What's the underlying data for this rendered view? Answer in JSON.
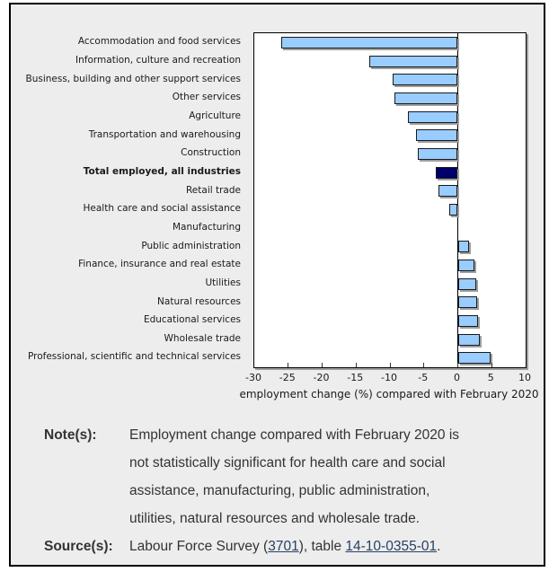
{
  "chart_data": {
    "type": "bar",
    "orientation": "horizontal",
    "title": "",
    "xlabel": "employment change (%) compared with February 2020",
    "ylabel": "",
    "xlim": [
      -30,
      10
    ],
    "xticks": [
      -30,
      -25,
      -20,
      -15,
      -10,
      -5,
      0,
      5,
      10
    ],
    "grid": false,
    "legend": false,
    "categories": [
      "Accommodation and food services",
      "Information, culture and recreation",
      "Business, building and other support services",
      "Other services",
      "Agriculture",
      "Transportation and warehousing",
      "Construction",
      "Total employed, all industries",
      "Retail trade",
      "Health care and social assistance",
      "Manufacturing",
      "Public administration",
      "Finance, insurance and real estate",
      "Utilities",
      "Natural resources",
      "Educational services",
      "Wholesale trade",
      "Professional, scientific and technical services"
    ],
    "values": [
      -26.0,
      -13.0,
      -9.6,
      -9.3,
      -7.4,
      -6.2,
      -5.9,
      -3.2,
      -2.9,
      -1.3,
      0.0,
      1.7,
      2.5,
      2.7,
      2.8,
      3.0,
      3.3,
      4.8
    ],
    "highlight_category": "Total employed, all industries",
    "bar_color": "#99ccff",
    "highlight_color": "#00006b"
  },
  "notes": {
    "note_label": "Note(s):",
    "note_lines": [
      "Employment change compared with February 2020 is",
      "not statistically significant for health care and social",
      "assistance, manufacturing, public administration,",
      "utilities, natural resources and wholesale trade."
    ],
    "source_label": "Source(s):",
    "source_prefix": "Labour Force Survey (",
    "source_link_survey": "3701",
    "source_mid": "), table ",
    "source_link_table": "14-10-0355-01",
    "source_suffix": "."
  }
}
